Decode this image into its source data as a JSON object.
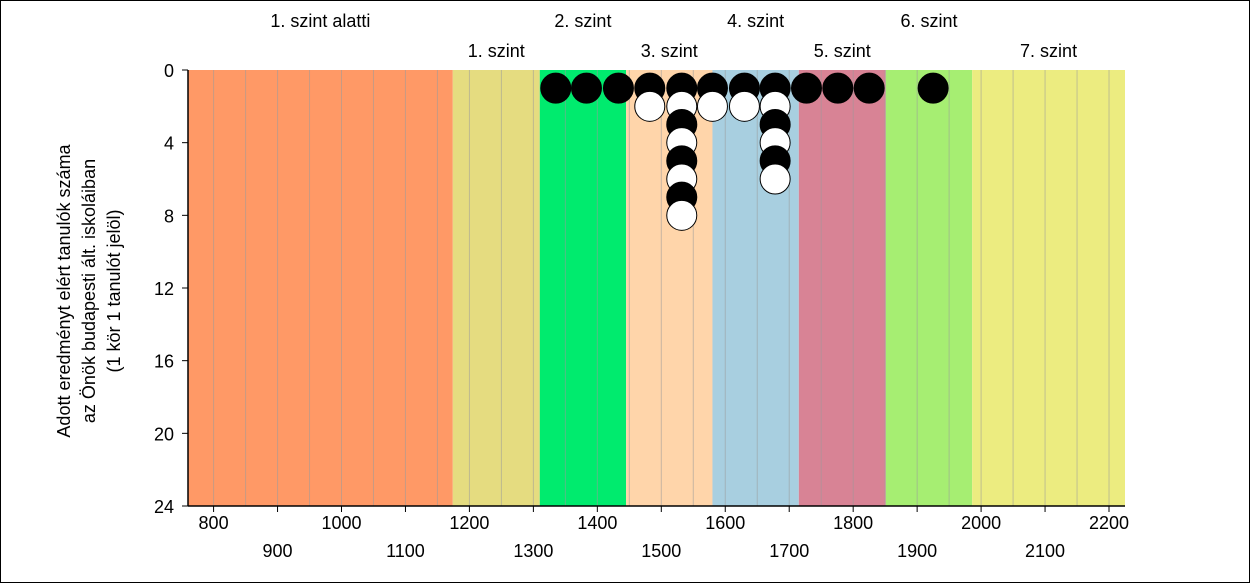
{
  "chart_data": {
    "type": "scatter",
    "xlim": [
      760,
      2225
    ],
    "ylim": [
      0,
      24
    ],
    "y_reversed": true,
    "ylabel_lines": [
      "Adott eredményt elért tanulók száma",
      "az Önök budapesti ált. iskoláiban",
      "(1 kör 1 tanulót jelöl)"
    ],
    "y_ticks": [
      0,
      4,
      8,
      12,
      16,
      20,
      24
    ],
    "x_ticks_row1": [
      800,
      1000,
      1200,
      1400,
      1600,
      1800,
      2000,
      2200
    ],
    "x_ticks_row2": [
      900,
      1100,
      1300,
      1500,
      1700,
      1900,
      2100
    ],
    "minor_grid_step": 50,
    "bands": [
      {
        "label": "1. szint alatti",
        "from": 760,
        "to": 1174,
        "color": "#FF9966",
        "label_row": 1
      },
      {
        "label": "1. szint",
        "from": 1174,
        "to": 1310,
        "color": "#E5DC80",
        "label_row": 2
      },
      {
        "label": "2. szint",
        "from": 1310,
        "to": 1445,
        "color": "#00EB6E",
        "label_row": 1
      },
      {
        "label": "3. szint",
        "from": 1445,
        "to": 1580,
        "color": "#FFD5AA",
        "label_row": 2
      },
      {
        "label": "4. szint",
        "from": 1580,
        "to": 1715,
        "color": "#A8CFE0",
        "label_row": 1
      },
      {
        "label": "5. szint",
        "from": 1715,
        "to": 1851,
        "color": "#D88395",
        "label_row": 2
      },
      {
        "label": "6. szint",
        "from": 1851,
        "to": 1986,
        "color": "#A6EE72",
        "label_row": 1
      },
      {
        "label": "7. szint",
        "from": 1986,
        "to": 2225,
        "color": "#ECEC80",
        "label_row": 2
      }
    ],
    "dot_colors": {
      "filled": "#000000",
      "open": "#FFFFFF"
    },
    "points": [
      {
        "x": 1335,
        "count": 1,
        "filled": [
          1
        ]
      },
      {
        "x": 1383,
        "count": 1,
        "filled": [
          1
        ]
      },
      {
        "x": 1433,
        "count": 1,
        "filled": [
          1
        ]
      },
      {
        "x": 1482,
        "count": 2,
        "filled": [
          1
        ]
      },
      {
        "x": 1532,
        "count": 8,
        "filled": [
          1,
          3,
          5,
          7
        ]
      },
      {
        "x": 1580,
        "count": 2,
        "filled": [
          1
        ]
      },
      {
        "x": 1630,
        "count": 2,
        "filled": [
          1
        ]
      },
      {
        "x": 1678,
        "count": 6,
        "filled": [
          1,
          3,
          5
        ]
      },
      {
        "x": 1727,
        "count": 1,
        "filled": [
          1
        ]
      },
      {
        "x": 1776,
        "count": 1,
        "filled": [
          1
        ]
      },
      {
        "x": 1825,
        "count": 1,
        "filled": [
          1
        ]
      },
      {
        "x": 1925,
        "count": 1,
        "filled": [
          1
        ]
      }
    ]
  }
}
